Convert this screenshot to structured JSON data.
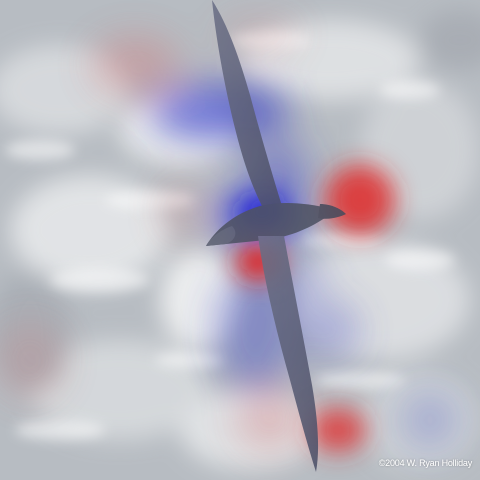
{
  "photo": {
    "subject": "albatross-in-flight-over-sea",
    "credit": "©2004 W. Ryan Holliday"
  },
  "overlay": {
    "type": "saliency-heatmap",
    "positive_color": "#e0302f",
    "negative_color": "#2c2ed8"
  }
}
